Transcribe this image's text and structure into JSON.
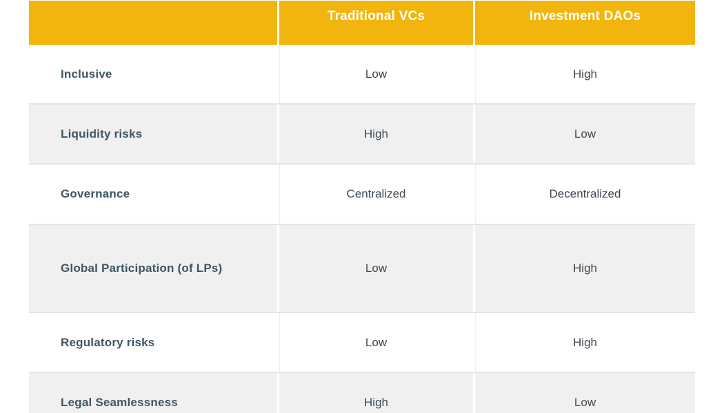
{
  "table": {
    "header": {
      "columns": [
        "Traditional VCs",
        "Investment DAOs"
      ]
    },
    "rows": [
      {
        "label": "Inclusive",
        "traditional_vcs": "Low",
        "investment_daos": "High"
      },
      {
        "label": "Liquidity risks",
        "traditional_vcs": "High",
        "investment_daos": "Low"
      },
      {
        "label": "Governance",
        "traditional_vcs": "Centralized",
        "investment_daos": "Decentralized"
      },
      {
        "label": "Global Participation (of LPs)",
        "traditional_vcs": "Low",
        "investment_daos": "High"
      },
      {
        "label": "Regulatory risks",
        "traditional_vcs": "Low",
        "investment_daos": "High"
      },
      {
        "label": "Legal Seamlessness",
        "traditional_vcs": "High",
        "investment_daos": "Low"
      }
    ],
    "colors": {
      "header_background": "#F2B50E",
      "header_text": "#FFFFFF",
      "label_text": "#3D5565",
      "value_text": "#3E4852",
      "row_alt_background": "#F0F0F0",
      "row_divider": "#E0E5E7",
      "column_separator": "#FFFFFF"
    }
  },
  "chart_data": {
    "type": "table",
    "title": "",
    "columns": [
      "",
      "Traditional VCs",
      "Investment DAOs"
    ],
    "rows": [
      [
        "Inclusive",
        "Low",
        "High"
      ],
      [
        "Liquidity risks",
        "High",
        "Low"
      ],
      [
        "Governance",
        "Centralized",
        "Decentralized"
      ],
      [
        "Global Participation (of LPs)",
        "Low",
        "High"
      ],
      [
        "Regulatory risks",
        "Low",
        "High"
      ],
      [
        "Legal Seamlessness",
        "High",
        "Low"
      ]
    ],
    "layout": {
      "header_style": "gold-bar-white-text",
      "row_striping": "white-gray-alternating",
      "value_alignment": "center",
      "label_alignment": "left"
    }
  }
}
